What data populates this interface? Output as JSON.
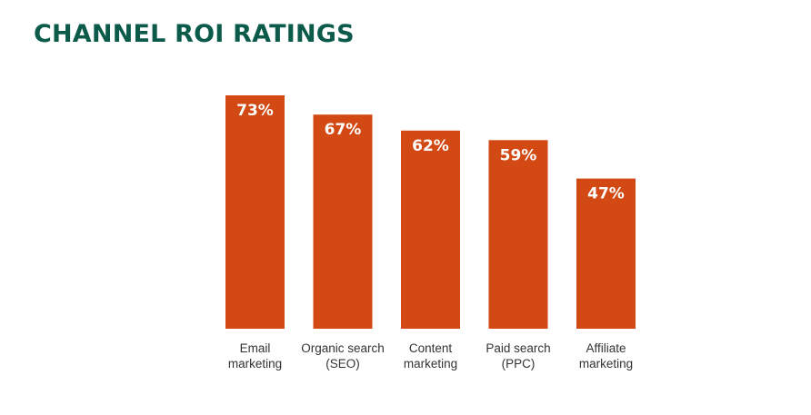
{
  "title": "CHANNEL ROI RATINGS",
  "colors": {
    "title": "#0b5a4a",
    "bar": "#d24913",
    "bar_label": "#ffffff",
    "category_label": "#333333"
  },
  "chart_data": {
    "type": "bar",
    "title": "CHANNEL ROI RATINGS",
    "xlabel": "",
    "ylabel": "",
    "unit": "%",
    "ylim": [
      0,
      100
    ],
    "grid": false,
    "legend": "none",
    "categories": [
      [
        "Email",
        "marketing"
      ],
      [
        "Organic search",
        "(SEO)"
      ],
      [
        "Content",
        "marketing"
      ],
      [
        "Paid search",
        "(PPC)"
      ],
      [
        "Affiliate",
        "marketing"
      ]
    ],
    "values": [
      73,
      67,
      62,
      59,
      47
    ],
    "value_labels": [
      "73%",
      "67%",
      "62%",
      "59%",
      "47%"
    ]
  }
}
